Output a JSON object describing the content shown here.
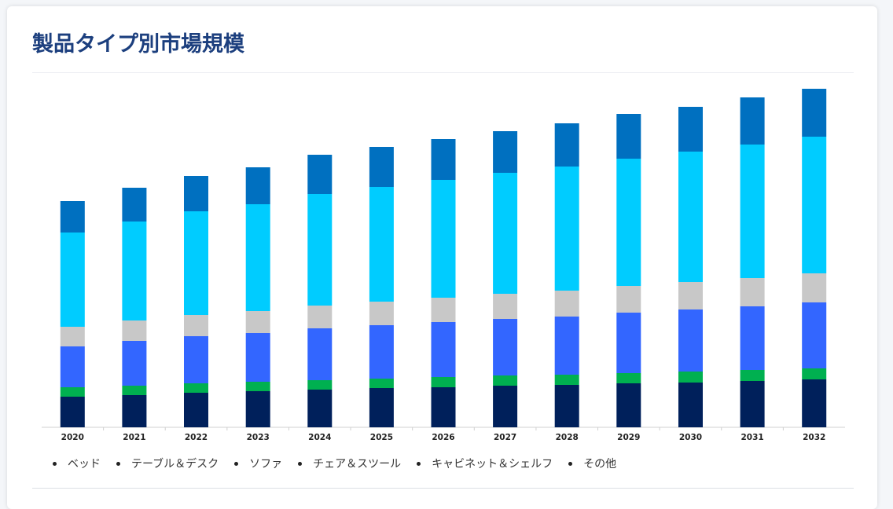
{
  "title": "製品タイプ別市場規模",
  "chart_data": {
    "type": "bar",
    "stacked": true,
    "categories": [
      "2020",
      "2021",
      "2022",
      "2023",
      "2024",
      "2025",
      "2026",
      "2027",
      "2028",
      "2029",
      "2030",
      "2031",
      "2032"
    ],
    "series": [
      {
        "name": "ベッド",
        "color": "#00205b",
        "values": [
          39,
          41,
          44,
          46,
          48,
          50,
          51,
          53,
          54,
          56,
          57,
          59,
          61
        ]
      },
      {
        "name": "テーブル＆デスク",
        "color": "#00b050",
        "values": [
          12,
          12,
          12,
          12,
          12,
          12,
          13,
          13,
          13,
          13,
          14,
          14,
          14
        ]
      },
      {
        "name": "ソファ",
        "color": "#3366ff",
        "values": [
          52,
          57,
          60,
          62,
          66,
          68,
          70,
          72,
          74,
          77,
          79,
          81,
          84
        ]
      },
      {
        "name": "チェア＆スツール",
        "color": "#c8c8c8",
        "values": [
          25,
          26,
          27,
          28,
          29,
          30,
          31,
          32,
          33,
          34,
          35,
          36,
          37
        ]
      },
      {
        "name": "キャビネット＆シェルフ",
        "color": "#00ccff",
        "values": [
          120,
          126,
          132,
          136,
          142,
          146,
          150,
          154,
          158,
          162,
          166,
          170,
          174
        ]
      },
      {
        "name": "その他",
        "color": "#0070c0",
        "values": [
          40,
          43,
          45,
          47,
          50,
          51,
          52,
          53,
          55,
          57,
          57,
          60,
          61
        ]
      }
    ],
    "ylim": [
      0,
      440
    ],
    "grid": false,
    "legend": "bottom"
  }
}
